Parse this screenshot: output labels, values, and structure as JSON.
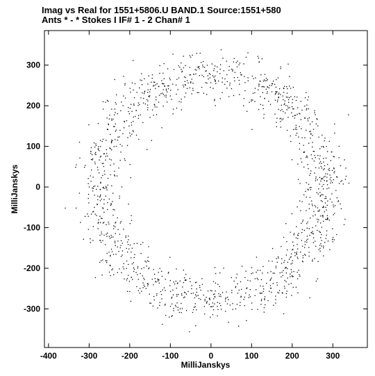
{
  "header": {
    "line1": "Imag vs Real for 1551+5806.U BAND.1   Source:1551+580",
    "line2": "Ants * - *     Stokes I  IF# 1 - 2  Chan# 1"
  },
  "chart_data": {
    "type": "scatter",
    "title": "Imag vs Real for 1551+5806.U BAND.1   Source:1551+580",
    "subtitle": "Ants * - *     Stokes I  IF# 1 - 2  Chan# 1",
    "xlabel": "MilliJanskys",
    "ylabel": "MilliJanskys",
    "xlim": [
      -410,
      385
    ],
    "ylim": [
      -395,
      385
    ],
    "xticks": [
      -400,
      -300,
      -200,
      -100,
      0,
      100,
      200,
      300
    ],
    "yticks": [
      -300,
      -200,
      -100,
      0,
      100,
      200,
      300
    ],
    "xtick_labels": [
      "-400",
      "-300",
      "-200",
      "-100",
      "0",
      "100",
      "200",
      "300"
    ],
    "ytick_labels": [
      "-300",
      "-200",
      "-100",
      "0",
      "100",
      "200",
      "300"
    ],
    "grid": false,
    "legend": "none",
    "marker_color": "#000000",
    "distribution": {
      "shape": "annulus centered near origin",
      "center": [
        0,
        0
      ],
      "mean_radius_mJy": 280,
      "radial_spread_mJy": 30,
      "point_count": 1500
    }
  }
}
